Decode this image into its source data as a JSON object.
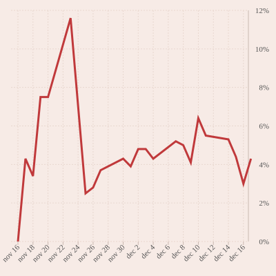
{
  "chart_data": {
    "type": "line",
    "title": "",
    "xlabel": "",
    "ylabel": "",
    "y_axis_position": "right",
    "ylim": [
      0,
      12
    ],
    "yticks": [
      0,
      2,
      4,
      6,
      8,
      10,
      12
    ],
    "ytick_labels": [
      "0%",
      "2%",
      "4%",
      "6%",
      "8%",
      "10%",
      "12%"
    ],
    "xlim": [
      "2021-11-16",
      "2021-12-16"
    ],
    "xtick_labels": [
      "nov 16",
      "nov 18",
      "nov 20",
      "nov 22",
      "nov 24",
      "nov 26",
      "nov 28",
      "nov 30",
      "dec 2",
      "dec 4",
      "dec 6",
      "dec 8",
      "dec 10",
      "dec 12",
      "dec 14",
      "dec 16"
    ],
    "grid": true,
    "line_color": "#c0393b",
    "background_color": "#f7ebe6",
    "series": [
      {
        "x": [
          "2021-11-16",
          "2021-11-17",
          "2021-11-18",
          "2021-11-19",
          "2021-11-20",
          "2021-11-23",
          "2021-11-25",
          "2021-11-26",
          "2021-11-27",
          "2021-11-30",
          "2021-12-01",
          "2021-12-02",
          "2021-12-03",
          "2021-12-04",
          "2021-12-07",
          "2021-12-08",
          "2021-12-09",
          "2021-12-10",
          "2021-12-11",
          "2021-12-14",
          "2021-12-15",
          "2021-12-16",
          "2021-12-17"
        ],
        "values": [
          0.0,
          4.3,
          3.4,
          7.5,
          7.5,
          11.6,
          2.5,
          2.8,
          3.7,
          4.3,
          3.9,
          4.8,
          4.8,
          4.3,
          5.2,
          5.0,
          4.1,
          6.4,
          5.5,
          5.3,
          4.4,
          3.0,
          4.3
        ]
      }
    ]
  }
}
